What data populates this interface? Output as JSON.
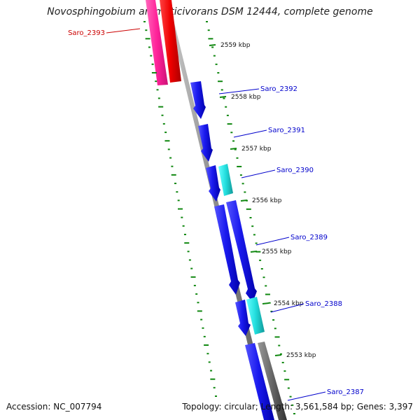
{
  "title": "Novosphingobium aromaticivorans DSM 12444, complete genome",
  "footer": {
    "accession": "Accession: NC_007794",
    "summary": "Topology: circular; Length: 3,561,584 bp; Genes: 3,397"
  },
  "ticks": [
    {
      "label": "2559 kbp"
    },
    {
      "label": "2558 kbp"
    },
    {
      "label": "2557 kbp"
    },
    {
      "label": "2556 kbp"
    },
    {
      "label": "2555 kbp"
    },
    {
      "label": "2554 kbp"
    },
    {
      "label": "2553 kbp"
    }
  ],
  "genes": [
    {
      "name": "Saro_2393",
      "color": "#cc0000"
    },
    {
      "name": "Saro_2392",
      "color": "#0000cc"
    },
    {
      "name": "Saro_2391",
      "color": "#0000cc"
    },
    {
      "name": "Saro_2390",
      "color": "#0000cc"
    },
    {
      "name": "Saro_2389",
      "color": "#0000cc"
    },
    {
      "name": "Saro_2388",
      "color": "#0000cc"
    },
    {
      "name": "Saro_2387",
      "color": "#0000cc"
    }
  ],
  "colors": {
    "forward_cds": "#1010ee",
    "reverse_cds": "#ee0000",
    "rna": "#ff3399",
    "cyan_feature": "#22dddd",
    "gc_track": "#5a5a5a",
    "backbone": "#888888",
    "dots": "#118811"
  }
}
